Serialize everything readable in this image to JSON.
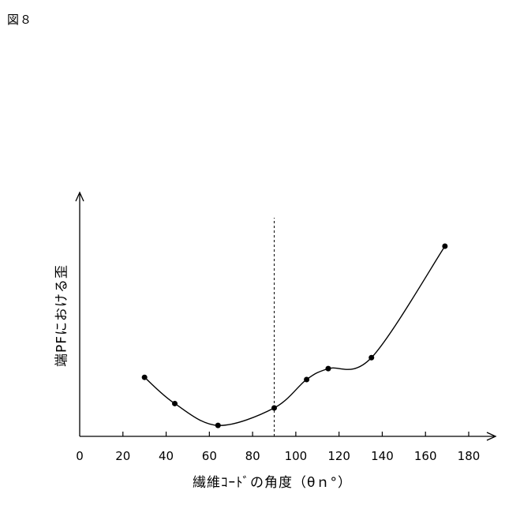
{
  "figure_label": "図８",
  "chart_data": {
    "type": "line",
    "title": "",
    "xlabel": "繊維ｺｰﾄﾞの角度（θｎ°）",
    "ylabel": "端PFにおける歪",
    "xlim": [
      0,
      180
    ],
    "ylim": [
      0,
      100
    ],
    "x_ticks": [
      0,
      20,
      40,
      60,
      80,
      100,
      120,
      140,
      160,
      180
    ],
    "y_ticks": [],
    "grid": false,
    "legend": "none",
    "series": [
      {
        "points": [
          {
            "x": 30,
            "y": 27
          },
          {
            "x": 44,
            "y": 15
          },
          {
            "x": 64,
            "y": 5
          },
          {
            "x": 90,
            "y": 13
          },
          {
            "x": 105,
            "y": 26
          },
          {
            "x": 115,
            "y": 31
          },
          {
            "x": 135,
            "y": 36
          },
          {
            "x": 169,
            "y": 87
          }
        ],
        "color": "#000000"
      }
    ],
    "reference_line": {
      "x": 90,
      "style": "dashed"
    }
  }
}
